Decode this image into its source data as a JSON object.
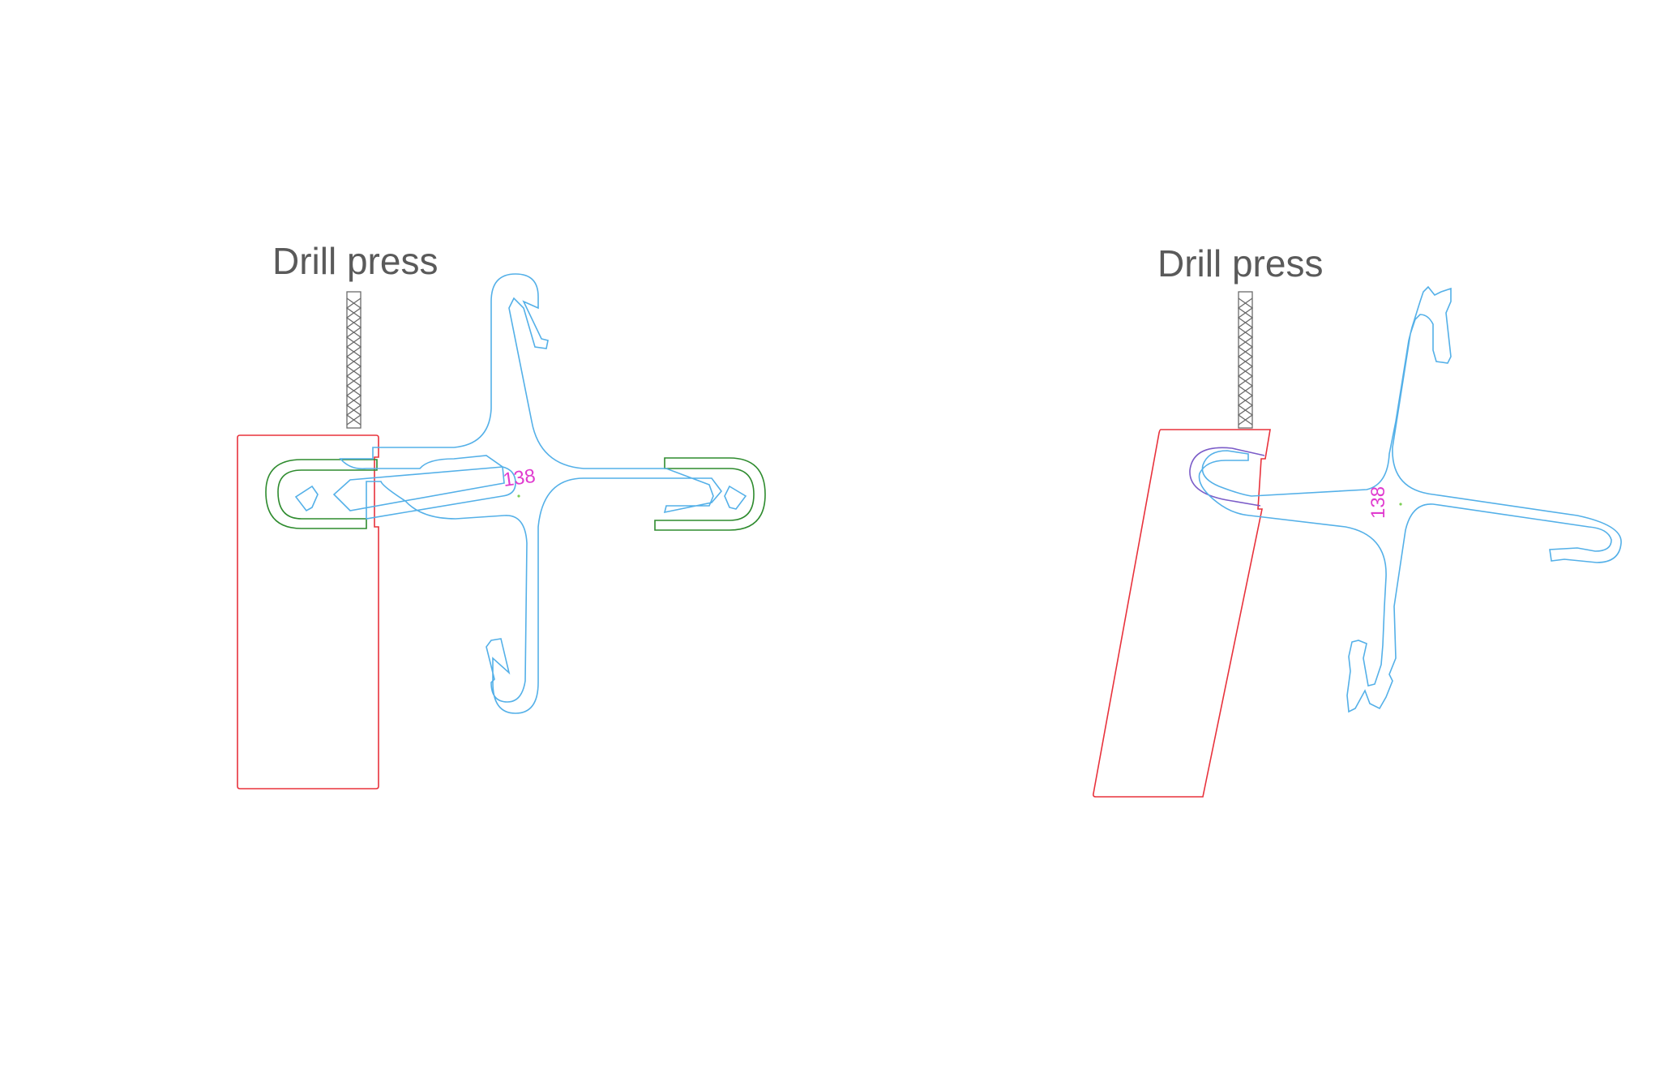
{
  "diagrams": [
    {
      "label": "Drill press",
      "part_number": "138",
      "colors": {
        "block": "#e8323c",
        "part": "#54b0e8",
        "clamp": "#2e8b2e",
        "number": "#e03ccf"
      }
    },
    {
      "label": "Drill press",
      "part_number": "138",
      "colors": {
        "block": "#e8323c",
        "part": "#54b0e8",
        "clamp": "#7b5cc8",
        "number": "#e03ccf"
      }
    }
  ]
}
